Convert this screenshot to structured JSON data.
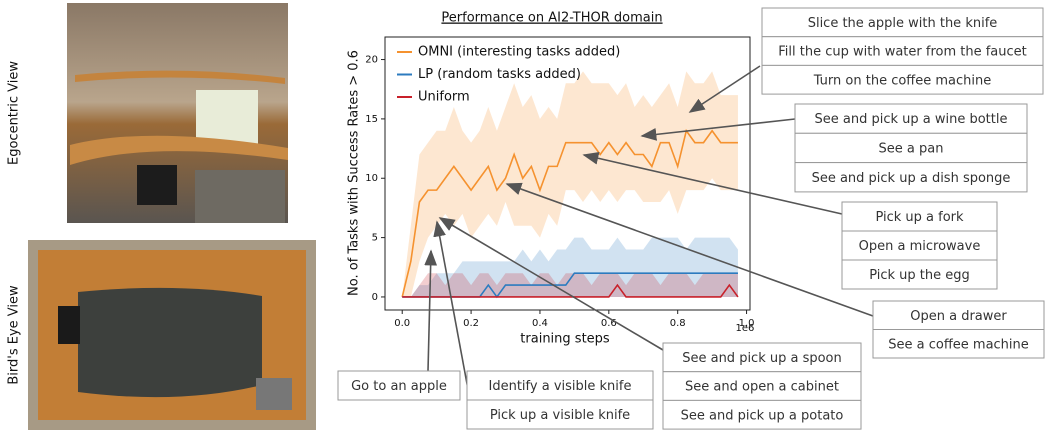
{
  "chart_data": {
    "type": "line",
    "title": "Performance on AI2-THOR domain",
    "x_label": "training steps",
    "y_label": "No. of Tasks with Success Rates > 0.6",
    "x_offset_label": "1e6",
    "xlim": [
      -0.05,
      1.01
    ],
    "ylim": [
      -1.1,
      21.9
    ],
    "xticks": [
      {
        "value": 0,
        "label": "0.0"
      },
      0.2,
      0.4,
      0.6,
      0.8,
      {
        "value": 1,
        "label": "1.0"
      }
    ],
    "yticks": [
      0,
      5,
      10,
      15,
      20
    ],
    "legend": "upper left",
    "x": [
      0,
      0.025,
      0.05,
      0.075,
      0.1,
      0.125,
      0.15,
      0.175,
      0.2,
      0.225,
      0.25,
      0.275,
      0.3,
      0.325,
      0.35,
      0.375,
      0.4,
      0.425,
      0.45,
      0.475,
      0.5,
      0.525,
      0.55,
      0.575,
      0.6,
      0.625,
      0.65,
      0.675,
      0.7,
      0.725,
      0.75,
      0.775,
      0.8,
      0.825,
      0.85,
      0.875,
      0.9,
      0.925,
      0.95,
      0.975
    ],
    "series": [
      {
        "name": "OMNI (interesting tasks added)",
        "color": "#f5922f",
        "values": [
          0,
          3,
          8,
          9,
          9,
          10,
          11,
          10,
          9,
          10,
          11,
          9,
          10,
          12,
          10,
          11,
          9,
          11,
          11,
          13,
          13,
          13,
          13,
          12,
          13,
          12,
          13,
          12,
          12,
          11,
          13,
          13,
          11,
          14,
          13,
          13,
          14,
          13,
          13,
          13
        ],
        "lower": [
          0,
          0,
          3,
          5,
          6,
          7,
          6,
          7,
          5,
          6,
          7,
          6,
          8,
          6,
          6,
          6,
          5,
          7,
          6,
          9,
          9,
          8,
          9,
          8,
          9,
          8,
          9,
          9,
          8,
          8,
          8,
          9,
          7,
          9,
          9,
          9,
          10,
          9,
          9,
          9
        ],
        "upper": [
          0,
          6,
          12,
          13,
          14,
          14,
          16,
          14,
          13,
          14,
          16,
          14,
          16,
          18,
          16,
          17,
          15,
          16,
          15,
          18,
          18,
          19,
          18,
          18,
          18,
          17,
          18,
          16,
          17,
          16,
          17,
          18,
          16,
          19,
          18,
          18,
          19,
          17,
          17,
          17
        ]
      },
      {
        "name": "LP (random tasks added)",
        "color": "#2c7bbf",
        "values": [
          0,
          0,
          0,
          0,
          0,
          0,
          0,
          0,
          0,
          0,
          1,
          0,
          1,
          1,
          1,
          1,
          1,
          1,
          1,
          1,
          2,
          2,
          2,
          2,
          2,
          2,
          2,
          2,
          2,
          2,
          2,
          2,
          2,
          2,
          2,
          2,
          2,
          2,
          2,
          2
        ],
        "lower": [
          0,
          0,
          0,
          0,
          0,
          0,
          0,
          0,
          0,
          0,
          0,
          0,
          0,
          0,
          0,
          0,
          0,
          0,
          0,
          0,
          0,
          0,
          0,
          0,
          0,
          0,
          0,
          0,
          0,
          0,
          0,
          0,
          0,
          0,
          0,
          0,
          0,
          0,
          0,
          0
        ],
        "upper": [
          0,
          0,
          1,
          1,
          2,
          2,
          2,
          3,
          3,
          3,
          3,
          3,
          3,
          3,
          4,
          3,
          4,
          3,
          4,
          4,
          5,
          5,
          4,
          4,
          4,
          5,
          4,
          4,
          4,
          5,
          5,
          5,
          5,
          4,
          5,
          5,
          5,
          5,
          5,
          4
        ]
      },
      {
        "name": "Uniform",
        "color": "#c8202a",
        "values": [
          0,
          0,
          0,
          0,
          0,
          0,
          0,
          0,
          0,
          0,
          0,
          0,
          0,
          0,
          0,
          0,
          0,
          0,
          0,
          0,
          0,
          0,
          0,
          0,
          0,
          1,
          0,
          0,
          0,
          0,
          0,
          0,
          0,
          0,
          0,
          0,
          0,
          0,
          1,
          0
        ],
        "lower": [
          0,
          0,
          0,
          0,
          0,
          0,
          0,
          0,
          0,
          0,
          0,
          0,
          0,
          0,
          0,
          0,
          0,
          0,
          0,
          0,
          0,
          0,
          0,
          0,
          0,
          0,
          0,
          0,
          0,
          0,
          0,
          0,
          0,
          0,
          0,
          0,
          0,
          0,
          0,
          0
        ],
        "upper": [
          0,
          0,
          1,
          2,
          2,
          1,
          2,
          2,
          1,
          2,
          2,
          1,
          2,
          2,
          2,
          1,
          2,
          2,
          1,
          2,
          2,
          2,
          1,
          2,
          2,
          2,
          1,
          2,
          2,
          2,
          1,
          2,
          2,
          2,
          1,
          2,
          2,
          2,
          2,
          2
        ]
      }
    ]
  },
  "views": {
    "egocentric": "Egocentric View",
    "birds_eye": "Bird's Eye View"
  },
  "annotations": [
    [
      "Slice the apple with the knife",
      "Fill the cup with water from the faucet",
      "Turn on the coffee machine"
    ],
    [
      "See and pick up a wine bottle",
      "See a pan",
      "See and pick up a dish sponge"
    ],
    [
      "Pick up a fork",
      "Open a microwave",
      "Pick up the egg"
    ],
    [
      "Open a drawer",
      "See a coffee machine"
    ],
    [
      "See and pick up a spoon",
      "See and open a cabinet",
      "See and pick up a potato"
    ],
    [
      "Identify a visible knife",
      "Pick up a visible knife"
    ],
    [
      "Go to an apple"
    ]
  ]
}
